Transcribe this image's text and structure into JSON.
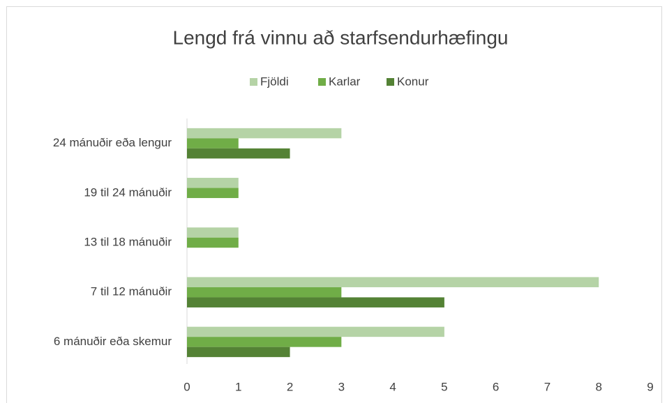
{
  "chart_data": {
    "type": "hbar",
    "title": "Lengd frá vinnu að starfsendurhæfingu",
    "categories": [
      "24 mánuðir eða lengur",
      "19 til 24 mánuðir",
      "13 til 18 mánuðir",
      "7 til 12 mánuðir",
      "6 mánuðir eða skemur"
    ],
    "series": [
      {
        "name": "Fjöldi",
        "color": "#b5d3a6",
        "values": [
          3,
          1,
          1,
          8,
          5
        ]
      },
      {
        "name": "Karlar",
        "color": "#70ad47",
        "values": [
          1,
          1,
          1,
          3,
          3
        ]
      },
      {
        "name": "Konur",
        "color": "#548235",
        "values": [
          2,
          0,
          0,
          5,
          2
        ]
      }
    ],
    "xlim": [
      0,
      9
    ],
    "xticks": [
      0,
      1,
      2,
      3,
      4,
      5,
      6,
      7,
      8,
      9
    ],
    "grid": false,
    "legend": "top"
  }
}
